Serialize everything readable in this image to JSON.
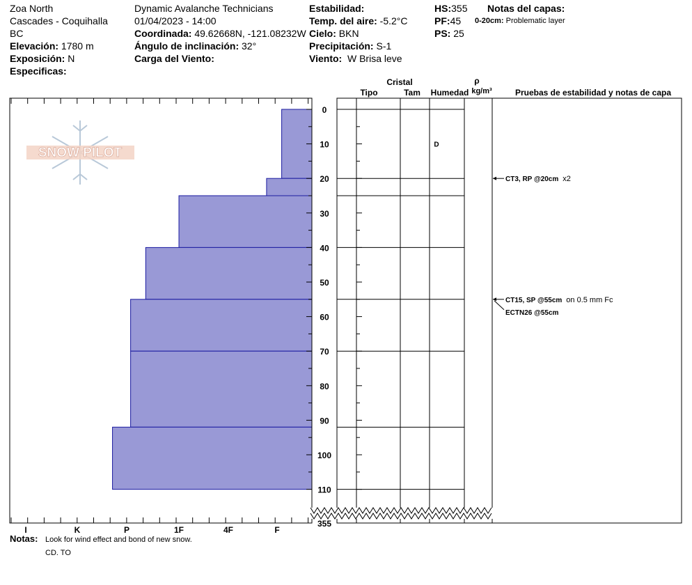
{
  "header": {
    "col1": {
      "location": "Zoa North",
      "region": "Cascades - Coquihalla",
      "state": "BC",
      "elevation_label": "Elevación:",
      "elevation": "1780 m",
      "aspect_label": "Exposición:",
      "aspect": "N",
      "specifics_label": "Especificas:"
    },
    "col2": {
      "observer": "Dynamic Avalanche Technicians",
      "datetime": "01/04/2023 - 14:00",
      "coord_label": "Coordinada:",
      "coords": "49.62668N, -121.08232W",
      "incline_label": "Ángulo de inclinación:",
      "incline": "32°",
      "wind_load_label": "Carga del Viento:"
    },
    "col3": {
      "stability_label": "Estabilidad:",
      "air_temp_label": "Temp. del aire:",
      "air_temp": "-5.2°C",
      "sky_label": "Cielo:",
      "sky": "BKN",
      "precip_label": "Precipitación:",
      "precip": "S-1",
      "wind_label": "Viento:",
      "wind": "W Brisa leve"
    },
    "col4": {
      "hs_label": "HS:",
      "hs": "355",
      "pf_label": "PF:",
      "pf": "45",
      "ps_label": "PS:",
      "ps": "25"
    },
    "layer_notes": {
      "title": "Notas del capas:",
      "range": "0-20cm:",
      "note": "Problematic layer"
    }
  },
  "logo": {
    "text": "SNOW PILOT"
  },
  "columns": {
    "cristal": "Cristal",
    "tipo": "Tipo",
    "tam": "Tam",
    "humedad": "Humedad",
    "rho": "ρ",
    "density_unit": "kg/m³",
    "tests": "Pruebas de estabilidad y notas de capa"
  },
  "notes": {
    "label": "Notas:",
    "line1": "Look for wind effect and bond of new snow.",
    "line2": "CD. TO"
  },
  "chart_data": {
    "type": "snow-profile",
    "y_axis": {
      "label": "",
      "unit": "cm",
      "ticks": [
        0,
        10,
        20,
        30,
        40,
        50,
        60,
        70,
        80,
        90,
        100,
        110
      ],
      "break_label": "355"
    },
    "hardness_axis": {
      "ticks": [
        "I",
        "K",
        "P",
        "1F",
        "4F",
        "F"
      ],
      "direction": "right-to-left"
    },
    "layers": [
      {
        "top": 0,
        "bottom": 20,
        "hardness": 0.1
      },
      {
        "top": 20,
        "bottom": 25,
        "hardness": 0.15
      },
      {
        "top": 25,
        "bottom": 40,
        "hardness": 0.44
      },
      {
        "top": 40,
        "bottom": 55,
        "hardness": 0.55
      },
      {
        "top": 55,
        "bottom": 70,
        "hardness": 0.6
      },
      {
        "top": 70,
        "bottom": 92,
        "hardness": 0.6
      },
      {
        "top": 92,
        "bottom": 110,
        "hardness": 0.66
      }
    ],
    "moisture": [
      {
        "depth": 10,
        "value": "D"
      }
    ],
    "stability_tests": [
      {
        "depth": 20,
        "label": "CT3, RP @20cm",
        "extra": "x2"
      },
      {
        "depth": 55,
        "label": "CT15, SP @55cm",
        "extra": "on 0.5 mm Fc"
      },
      {
        "depth": 55,
        "label": "ECTN26 @55cm",
        "extra": ""
      }
    ]
  }
}
